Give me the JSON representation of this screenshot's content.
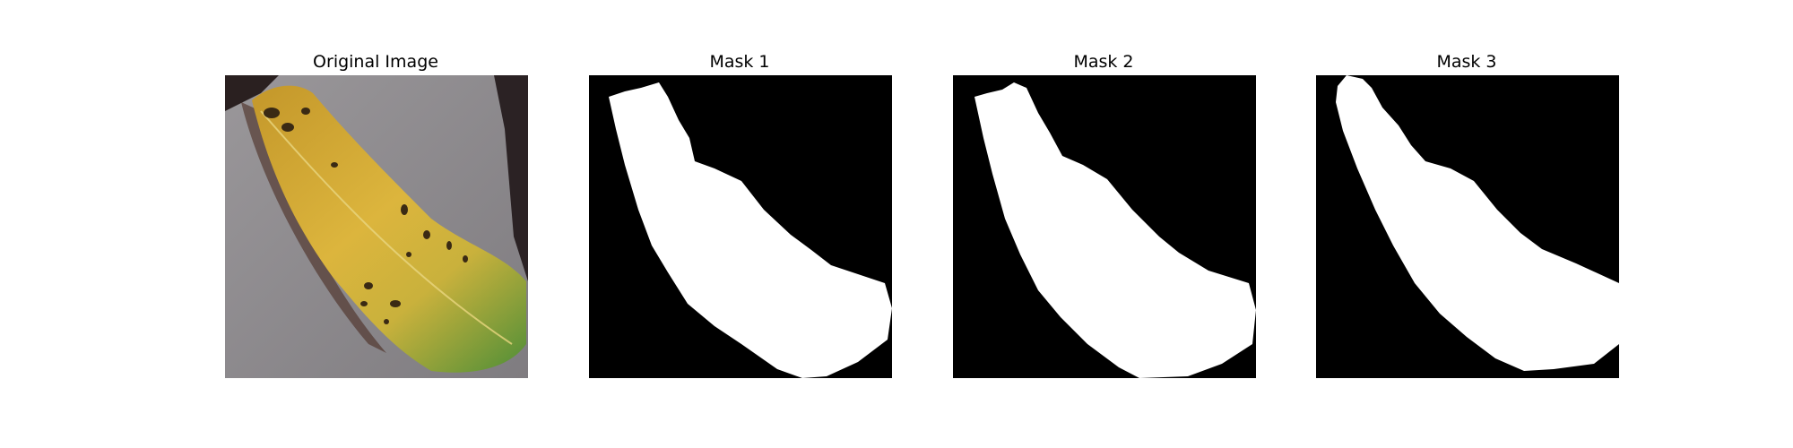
{
  "figure": {
    "panels": [
      {
        "title": "Original Image",
        "kind": "photo"
      },
      {
        "title": "Mask 1",
        "kind": "mask"
      },
      {
        "title": "Mask 2",
        "kind": "mask"
      },
      {
        "title": "Mask 3",
        "kind": "mask"
      }
    ]
  },
  "colors": {
    "page_background": "#ffffff",
    "mask_background": "#000000",
    "mask_foreground": "#ffffff",
    "photo_background": "#8f8c8f",
    "leaf_yellow": "#d9b23a",
    "leaf_green": "#6f9a3a",
    "leaf_spots": "#3a2a14"
  }
}
